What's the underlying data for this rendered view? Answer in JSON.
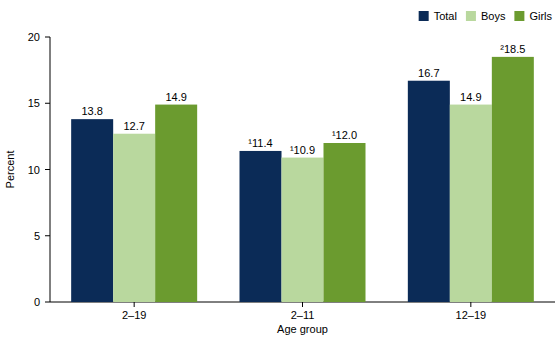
{
  "chart_data": {
    "type": "bar",
    "x_label": "Age group",
    "y_label": "Percent",
    "categories": [
      "2–19",
      "2–11",
      "12–19"
    ],
    "series": [
      {
        "name": "Total",
        "color": "#0b2b57",
        "values": [
          13.8,
          11.4,
          16.7
        ],
        "value_labels": [
          "13.8",
          "¹11.4",
          "16.7"
        ]
      },
      {
        "name": "Boys",
        "color": "#b9d89e",
        "values": [
          12.7,
          10.9,
          14.9
        ],
        "value_labels": [
          "12.7",
          "¹10.9",
          "14.9"
        ]
      },
      {
        "name": "Girls",
        "color": "#6b9b2f",
        "values": [
          14.9,
          12.0,
          18.5
        ],
        "value_labels": [
          "14.9",
          "¹12.0",
          "²18.5"
        ]
      }
    ],
    "ylim": [
      0,
      20
    ],
    "yticks": [
      0,
      5,
      10,
      15,
      20
    ],
    "grid": false,
    "legend": "top-right",
    "data_labels": true
  }
}
